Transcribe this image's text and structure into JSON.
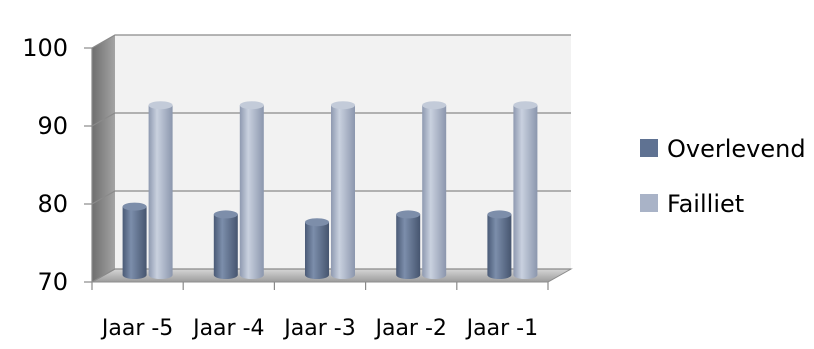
{
  "chart_data": {
    "type": "bar",
    "style": "3d-cylinder",
    "categories": [
      "Jaar -5",
      "Jaar -4",
      "Jaar -3",
      "Jaar -2",
      "Jaar -1"
    ],
    "series": [
      {
        "name": "Overlevend",
        "values": [
          78,
          77,
          76,
          77,
          77
        ],
        "color": "#5f7292"
      },
      {
        "name": "Failliet",
        "values": [
          91,
          91,
          91,
          91,
          91
        ],
        "color": "#a9b3c7"
      }
    ],
    "yticks": [
      70,
      80,
      90,
      100
    ],
    "ylim": [
      70,
      100
    ],
    "grid": true,
    "legend": "right",
    "title": "",
    "xlabel": "",
    "ylabel": ""
  }
}
